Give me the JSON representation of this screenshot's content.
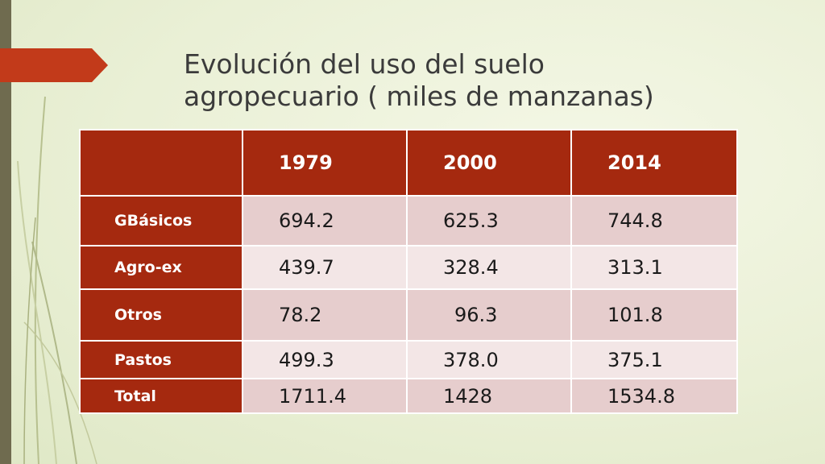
{
  "slide": {
    "title": "Evolución del uso del suelo\nagropecuario ( miles de manzanas)"
  },
  "table": {
    "columns": [
      "",
      "1979",
      "2000",
      "2014"
    ],
    "rows": [
      {
        "label": "GBásicos",
        "values": [
          "694.2",
          "625.3",
          "744.8"
        ]
      },
      {
        "label": "Agro-ex",
        "values": [
          "439.7",
          "328.4",
          "313.1"
        ]
      },
      {
        "label": "Otros",
        "values": [
          "78.2",
          "96.3",
          "101.8"
        ]
      },
      {
        "label": "Pastos",
        "values": [
          "499.3",
          "378.0",
          "375.1"
        ]
      },
      {
        "label": "Total",
        "values": [
          "1711.4",
          "1428",
          "1534.8"
        ]
      }
    ]
  },
  "colors": {
    "header_bg": "#a5290f",
    "accent_arrow": "#c23a1a",
    "row_dark": "#e6cdcd",
    "row_light": "#f3e6e6"
  }
}
